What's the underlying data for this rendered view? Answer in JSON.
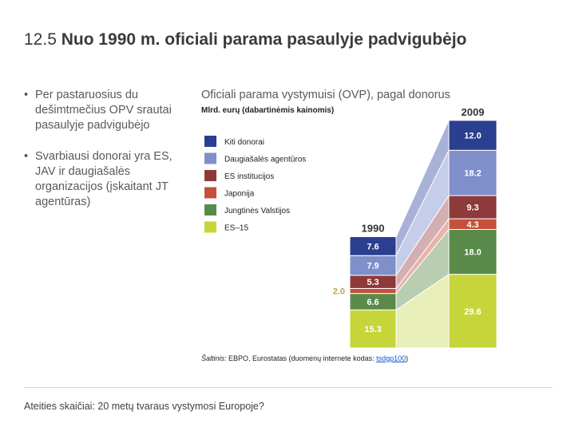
{
  "slide": {
    "title_number": "12.5",
    "title_text": "Nuo 1990 m. oficiali parama pasaulyje padvigubėjo",
    "bullets": [
      "Per pastaruosius du dešimtmečius OPV srautai pasaulyje padvigubėjo",
      "Svarbiausi donorai yra ES, JAV ir daugiašalės organizacijos (įskaitant JT agentūras)"
    ],
    "footer": "Ateities skaičiai: 20 metų tvaraus vystymosi Europoje?"
  },
  "chart_data": {
    "type": "bar",
    "stacked": true,
    "title": "Oficiali parama vystymuisi (OVP), pagal donorus",
    "ylabel": "Mlrd. eurų (dabartinėmis kainomis)",
    "categories": [
      "1990",
      "2009"
    ],
    "legend_position": "left",
    "series": [
      {
        "name": "ES–15",
        "values": [
          15.3,
          29.6
        ],
        "color": "#c6d63a",
        "area_color": "#e9efb8"
      },
      {
        "name": "Jungtinės Valstijos",
        "values": [
          6.6,
          18.0
        ],
        "color": "#5a8a4a",
        "area_color": "#b9cdb0"
      },
      {
        "name": "Japonija",
        "values": [
          2.0,
          4.3
        ],
        "color": "#c5513a",
        "area_color": "#e6b4a8"
      },
      {
        "name": "ES institucijos",
        "values": [
          5.3,
          9.3
        ],
        "color": "#8e3a3a",
        "area_color": "#d4aeb0"
      },
      {
        "name": "Daugiašalės agentūros",
        "values": [
          7.9,
          18.2
        ],
        "color": "#7f8fca",
        "area_color": "#c6cde9"
      },
      {
        "name": "Kiti donorai",
        "values": [
          7.6,
          12.0
        ],
        "color": "#2a3f8f",
        "area_color": "#a8b2d8"
      }
    ],
    "source_label": "Šaltinis:",
    "source_text": " EBPO, Eurostatas (duomenų internete kodas: ",
    "source_code": "tsdgp100",
    "source_end": ")"
  }
}
